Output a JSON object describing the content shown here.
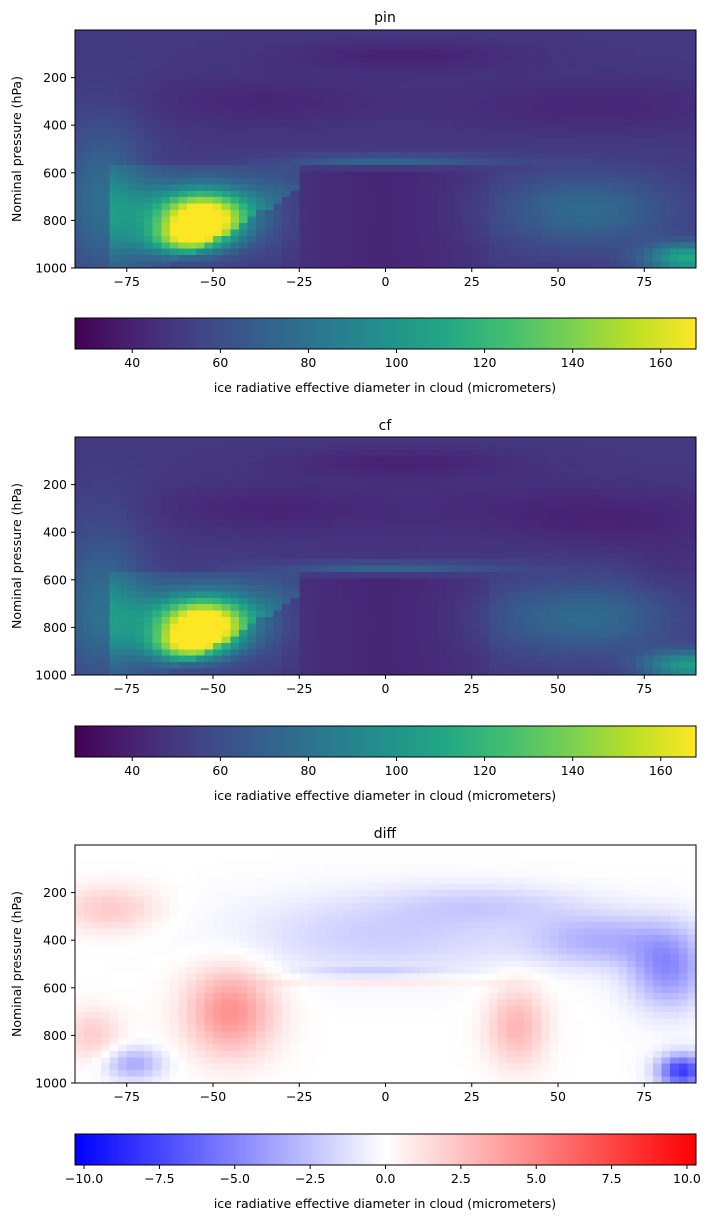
{
  "chart_data": [
    {
      "type": "heatmap",
      "title": "pin",
      "ylabel": "Nominal pressure (hPa)",
      "xlabel": "",
      "xlim": [
        -90,
        90
      ],
      "ylim": [
        1000,
        0
      ],
      "xticks": [
        -75,
        -50,
        -25,
        0,
        25,
        50,
        75
      ],
      "yticks": [
        200,
        400,
        600,
        800,
        1000
      ],
      "colormap": "viridis",
      "colorbar": {
        "label": "ice radiative effective diameter in cloud (micrometers)",
        "range": [
          27,
          168
        ],
        "ticks": [
          40,
          60,
          80,
          100,
          120,
          140,
          160
        ],
        "orientation": "horizontal"
      }
    },
    {
      "type": "heatmap",
      "title": "cf",
      "ylabel": "Nominal pressure (hPa)",
      "xlabel": "",
      "xlim": [
        -90,
        90
      ],
      "ylim": [
        1000,
        0
      ],
      "xticks": [
        -75,
        -50,
        -25,
        0,
        25,
        50,
        75
      ],
      "yticks": [
        200,
        400,
        600,
        800,
        1000
      ],
      "colormap": "viridis",
      "colorbar": {
        "label": "ice radiative effective diameter in cloud (micrometers)",
        "range": [
          27,
          168
        ],
        "ticks": [
          40,
          60,
          80,
          100,
          120,
          140,
          160
        ],
        "orientation": "horizontal"
      }
    },
    {
      "type": "heatmap",
      "title": "diff",
      "ylabel": "Nominal pressure (hPa)",
      "xlabel": "",
      "xlim": [
        -90,
        90
      ],
      "ylim": [
        1000,
        0
      ],
      "xticks": [
        -75,
        -50,
        -25,
        0,
        25,
        50,
        75
      ],
      "yticks": [
        200,
        400,
        600,
        800,
        1000
      ],
      "colormap": "bwr",
      "colorbar": {
        "label": "ice radiative effective diameter in cloud (micrometers)",
        "range": [
          -10.3,
          10.3
        ],
        "ticks": [
          -10.0,
          -7.5,
          -5.0,
          -2.5,
          0.0,
          2.5,
          5.0,
          7.5,
          10.0
        ],
        "tick_labels": [
          "−10.0",
          "−7.5",
          "−5.0",
          "−2.5",
          "0.0",
          "2.5",
          "5.0",
          "7.5",
          "10.0"
        ],
        "orientation": "horizontal"
      }
    }
  ]
}
